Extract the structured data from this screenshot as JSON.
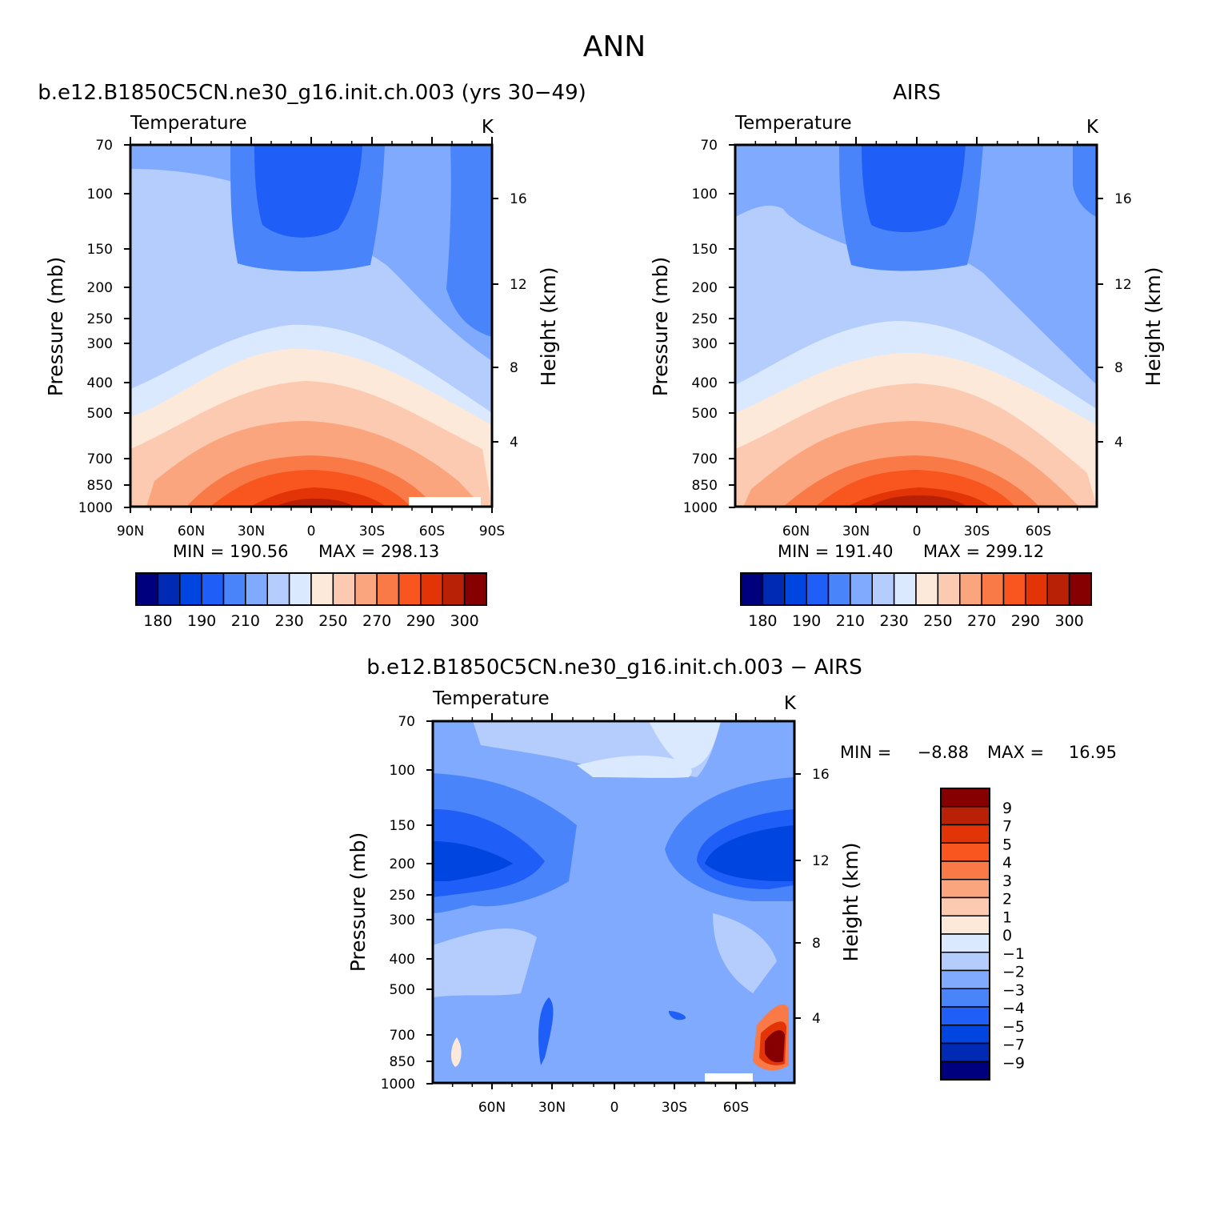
{
  "figure": {
    "title": "ANN",
    "palette": {
      "abs": [
        "#00007f",
        "#0029b4",
        "#0045e0",
        "#1f5ef7",
        "#4a84fa",
        "#7faafd",
        "#b5cdfd",
        "#dae9fd",
        "#fde9da",
        "#fccab0",
        "#fba57e",
        "#fa7a47",
        "#f8551f",
        "#e23406",
        "#b82106",
        "#870001"
      ],
      "diff": [
        "#00007f",
        "#0029b4",
        "#0045e0",
        "#1f5ef7",
        "#4a84fa",
        "#7faafd",
        "#b5cdfd",
        "#dae9fd",
        "#fde9da",
        "#fccab0",
        "#fba57e",
        "#fa7a47",
        "#f8551f",
        "#e23406",
        "#b82106",
        "#870001"
      ]
    }
  },
  "chart_data": [
    {
      "type": "contour",
      "title": "b.e12.B1850C5CN.ne30_g16.init.ch.003 (yrs 30−49)",
      "subtitle": "Temperature",
      "units": "K",
      "ylabel": "Pressure (mb)",
      "y2label": "Height (km)",
      "x_ticks": [
        "90N",
        "60N",
        "30N",
        "0",
        "30S",
        "60S",
        "90S"
      ],
      "y_ticks": [
        "70",
        "100",
        "150",
        "200",
        "250",
        "300",
        "400",
        "500",
        "700",
        "850",
        "1000"
      ],
      "y2_ticks": [
        "16",
        "12",
        "8",
        "4"
      ],
      "min_label": "MIN =  190.56",
      "max_label": "MAX =  298.13",
      "colorbar_labels": [
        "180",
        "190",
        "210",
        "230",
        "250",
        "270",
        "290",
        "300"
      ],
      "min": 190.56,
      "max": 298.13
    },
    {
      "type": "contour",
      "title": "AIRS",
      "subtitle": "Temperature",
      "units": "K",
      "ylabel": "Pressure (mb)",
      "y2label": "Height (km)",
      "x_ticks": [
        "60N",
        "30N",
        "0",
        "30S",
        "60S"
      ],
      "y_ticks": [
        "70",
        "100",
        "150",
        "200",
        "250",
        "300",
        "400",
        "500",
        "700",
        "850",
        "1000"
      ],
      "y2_ticks": [
        "16",
        "12",
        "8",
        "4"
      ],
      "min_label": "MIN =  191.40",
      "max_label": "MAX =  299.12",
      "colorbar_labels": [
        "180",
        "190",
        "210",
        "230",
        "250",
        "270",
        "290",
        "300"
      ],
      "min": 191.4,
      "max": 299.12
    },
    {
      "type": "contour",
      "title": "b.e12.B1850C5CN.ne30_g16.init.ch.003 − AIRS",
      "subtitle": "Temperature",
      "units": "K",
      "ylabel": "Pressure (mb)",
      "y2label": "Height (km)",
      "x_ticks": [
        "60N",
        "30N",
        "0",
        "30S",
        "60S"
      ],
      "y_ticks": [
        "70",
        "100",
        "150",
        "200",
        "250",
        "300",
        "400",
        "500",
        "700",
        "850",
        "1000"
      ],
      "y2_ticks": [
        "16",
        "12",
        "8",
        "4"
      ],
      "min_label": "MIN =",
      "min_value": "−8.88",
      "max_label": "MAX =",
      "max_value": "16.95",
      "colorbar_labels": [
        "9",
        "7",
        "5",
        "4",
        "3",
        "2",
        "1",
        "0",
        "−1",
        "−2",
        "−3",
        "−4",
        "−5",
        "−7",
        "−9"
      ],
      "min": -8.88,
      "max": 16.95
    }
  ]
}
